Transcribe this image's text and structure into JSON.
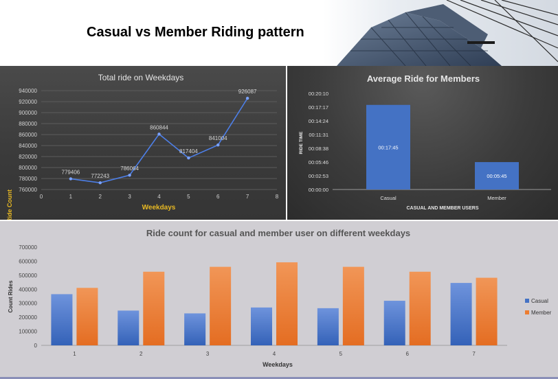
{
  "page": {
    "title": "Casual vs Member Riding pattern"
  },
  "colors": {
    "casual": "#4472c4",
    "member": "#ed7d31",
    "accent_label": "#e8b923",
    "line": "#4d7fe8"
  },
  "chart_data": [
    {
      "type": "line",
      "title": "Total ride on Weekdays",
      "xlabel": "Weekdays",
      "ylabel": "Ride Count",
      "x": [
        1,
        2,
        3,
        4,
        5,
        6,
        7
      ],
      "xlim": [
        0,
        8
      ],
      "xticks": [
        "0",
        "1",
        "2",
        "3",
        "4",
        "5",
        "6",
        "7",
        "8"
      ],
      "ylim": [
        760000,
        940000
      ],
      "yticks": [
        "760000",
        "780000",
        "800000",
        "820000",
        "840000",
        "860000",
        "880000",
        "900000",
        "920000",
        "940000"
      ],
      "series": [
        {
          "values": [
            779406,
            772243,
            786064,
            860844,
            817404,
            841004,
            926087
          ],
          "labels": [
            "779406",
            "772243",
            "786064",
            "860844",
            "817404",
            "841004",
            "926087"
          ]
        }
      ],
      "grid": true
    },
    {
      "type": "bar",
      "title": "Average Ride for Members",
      "xlabel": "CASUAL AND MEMBER USERS",
      "ylabel": "RIDE TIME",
      "categories": [
        "Casual",
        "Member"
      ],
      "values_seconds": [
        1065,
        345
      ],
      "labels": [
        "00:17:45",
        "00:05:45"
      ],
      "ylim_seconds": [
        0,
        1210
      ],
      "yticks": [
        "00:00:00",
        "00:02:53",
        "00:05:46",
        "00:08:38",
        "00:11:31",
        "00:14:24",
        "00:17:17",
        "00:20:10"
      ]
    },
    {
      "type": "bar",
      "title": "Ride count for casual and member user on different weekdays",
      "xlabel": "Weekdays",
      "ylabel": "Count Rides",
      "categories": [
        "1",
        "2",
        "3",
        "4",
        "5",
        "6",
        "7"
      ],
      "ylim": [
        0,
        700000
      ],
      "yticks": [
        "0",
        "100000",
        "200000",
        "300000",
        "400000",
        "500000",
        "600000",
        "700000"
      ],
      "series": [
        {
          "name": "Casual",
          "values": [
            365000,
            248000,
            228000,
            270000,
            265000,
            318000,
            445000
          ]
        },
        {
          "name": "Member",
          "values": [
            410000,
            525000,
            560000,
            592000,
            560000,
            525000,
            482000
          ]
        }
      ],
      "legend": "right"
    }
  ]
}
